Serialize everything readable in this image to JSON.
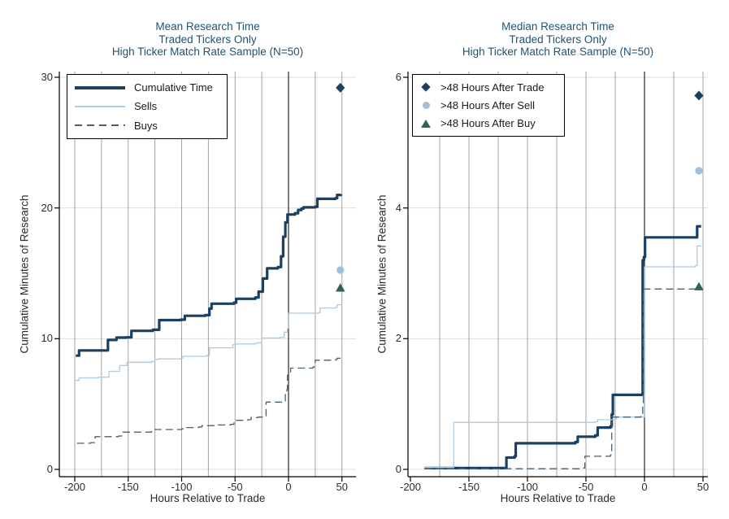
{
  "figure": {
    "background": "#ffffff",
    "palette": {
      "navy": "#1b4062",
      "light_blue": "#aecbdf",
      "slate_dashed": "#476173",
      "marker_circle_blue": "#9cc0de",
      "marker_triangle_green": "#2f6456",
      "title_navy": "#25536e",
      "zero_line_maroon": "#473333",
      "grid_vertical_gray": "#a3a3a3",
      "grid_horizontal_gray": "#dedede",
      "axis_black": "#000000"
    }
  },
  "chart_data": [
    {
      "type": "step-line",
      "title_lines": [
        "Mean Research Time",
        "Traded Tickers Only",
        "High Ticker Match Rate Sample (N=50)"
      ],
      "xlabel": "Hours Relative to Trade",
      "ylabel": "Cumulative Minutes of Research",
      "xlim": [
        -215,
        62
      ],
      "ylim": [
        0,
        30
      ],
      "xticks": [
        -200,
        -150,
        -100,
        -50,
        0,
        50
      ],
      "yticks": [
        0,
        10,
        20,
        30
      ],
      "xgrid_step": 25,
      "grid_on": true,
      "vline_x": 0,
      "vline_color": "#473333",
      "legend_position": "top-left",
      "legend": [
        {
          "label": "Cumulative Time",
          "style": "thick-line",
          "color": "#1b4062"
        },
        {
          "label": "Sells",
          "style": "thin-line",
          "color": "#aecbdf"
        },
        {
          "label": "Buys",
          "style": "dashed-line",
          "color": "#476173"
        }
      ],
      "series": [
        {
          "name": "Cumulative Time",
          "color": "#1b4062",
          "width": 3.2,
          "dash": null,
          "points": [
            [
              -199,
              8.7
            ],
            [
              -196,
              9.1
            ],
            [
              -176,
              9.1
            ],
            [
              -169,
              9.9
            ],
            [
              -161,
              10.08
            ],
            [
              -152,
              10.1
            ],
            [
              -147,
              10.6
            ],
            [
              -127,
              10.68
            ],
            [
              -121,
              11.42
            ],
            [
              -101,
              11.45
            ],
            [
              -97,
              11.75
            ],
            [
              -78,
              11.8
            ],
            [
              -74,
              12.3
            ],
            [
              -72,
              12.68
            ],
            [
              -51,
              12.75
            ],
            [
              -49,
              13.05
            ],
            [
              -31,
              13.15
            ],
            [
              -28,
              13.6
            ],
            [
              -24,
              14.6
            ],
            [
              -20,
              15.38
            ],
            [
              -10,
              15.48
            ],
            [
              -7,
              16.3
            ],
            [
              -5,
              17.8
            ],
            [
              -3,
              18.9
            ],
            [
              -1,
              19.5
            ],
            [
              6,
              19.6
            ],
            [
              9,
              19.85
            ],
            [
              12,
              19.95
            ],
            [
              14,
              20.05
            ],
            [
              25,
              20.1
            ],
            [
              27,
              20.7
            ],
            [
              44,
              20.75
            ],
            [
              45.5,
              21.0
            ],
            [
              49,
              21.05
            ]
          ]
        },
        {
          "name": "Sells",
          "color": "#aecbdf",
          "width": 1.3,
          "dash": null,
          "points": [
            [
              -200,
              6.8
            ],
            [
              -196,
              7.0
            ],
            [
              -178,
              7.05
            ],
            [
              -168,
              7.5
            ],
            [
              -158,
              7.95
            ],
            [
              -151,
              8.2
            ],
            [
              -128,
              8.25
            ],
            [
              -125,
              8.4
            ],
            [
              -122,
              8.45
            ],
            [
              -101,
              8.5
            ],
            [
              -99,
              8.65
            ],
            [
              -77,
              8.7
            ],
            [
              -74,
              9.3
            ],
            [
              -52,
              9.55
            ],
            [
              -50,
              9.6
            ],
            [
              -31,
              9.65
            ],
            [
              -29,
              9.7
            ],
            [
              -25,
              10.05
            ],
            [
              -8,
              10.1
            ],
            [
              -4,
              10.5
            ],
            [
              -1,
              10.8
            ],
            [
              0,
              11.95
            ],
            [
              28,
              12.0
            ],
            [
              29.5,
              12.35
            ],
            [
              44,
              12.4
            ],
            [
              45.5,
              12.6
            ],
            [
              49,
              12.65
            ]
          ]
        },
        {
          "name": "Buys",
          "color": "#476173",
          "width": 1.3,
          "dash": "9 5",
          "points": [
            [
              -198,
              2.0
            ],
            [
              -185,
              2.05
            ],
            [
              -181,
              2.5
            ],
            [
              -159,
              2.55
            ],
            [
              -156,
              2.85
            ],
            [
              -128,
              2.9
            ],
            [
              -125,
              3.05
            ],
            [
              -100,
              3.1
            ],
            [
              -97,
              3.2
            ],
            [
              -84,
              3.25
            ],
            [
              -81,
              3.35
            ],
            [
              -66,
              3.4
            ],
            [
              -54,
              3.45
            ],
            [
              -51,
              3.75
            ],
            [
              -38,
              3.8
            ],
            [
              -35,
              3.97
            ],
            [
              -28,
              4.0
            ],
            [
              -21,
              5.15
            ],
            [
              -6,
              5.2
            ],
            [
              -3,
              6.0
            ],
            [
              -1.5,
              6.1
            ],
            [
              -1,
              7.2
            ],
            [
              2,
              7.75
            ],
            [
              23,
              7.85
            ],
            [
              25,
              8.35
            ],
            [
              44,
              8.4
            ],
            [
              45.5,
              8.5
            ],
            [
              49,
              8.5
            ]
          ]
        }
      ],
      "markers": [
        {
          "name": ">48 Hours After Trade",
          "shape": "diamond",
          "color": "#1b4062",
          "x": 48.5,
          "y": 29.2
        },
        {
          "name": ">48 Hours After Sell",
          "shape": "circle",
          "color": "#9cc0de",
          "x": 48.5,
          "y": 15.25
        },
        {
          "name": ">48 Hours After Buy",
          "shape": "triangle",
          "color": "#2f6456",
          "x": 48.5,
          "y": 13.9
        }
      ]
    },
    {
      "type": "step-line",
      "title_lines": [
        "Median Research Time",
        "Traded Tickers Only",
        "High Ticker Match Rate Sample (N=50)"
      ],
      "xlabel": "Hours Relative to Trade",
      "ylabel": "Cumulative Minutes of Research",
      "xlim": [
        -203,
        55
      ],
      "ylim": [
        0,
        6
      ],
      "xticks": [
        -200,
        -150,
        -100,
        -50,
        0,
        50
      ],
      "yticks": [
        0,
        2,
        4,
        6
      ],
      "xgrid_step": 25,
      "grid_on": true,
      "vline_x": 0,
      "vline_color": "#473333",
      "legend_position": "top-left",
      "legend": [
        {
          "label": ">48 Hours After Trade",
          "style": "diamond",
          "color": "#1b4062"
        },
        {
          "label": ">48 Hours After Sell",
          "style": "circle",
          "color": "#9cc0de"
        },
        {
          "label": ">48 Hours After Buy",
          "style": "triangle",
          "color": "#2f6456"
        }
      ],
      "series": [
        {
          "name": "Cumulative Time",
          "color": "#1b4062",
          "width": 3.2,
          "dash": null,
          "points": [
            [
              -188,
              0.02
            ],
            [
              -119,
              0.02
            ],
            [
              -118,
              0.18
            ],
            [
              -111,
              0.2
            ],
            [
              -110,
              0.4
            ],
            [
              -59,
              0.42
            ],
            [
              -57,
              0.5
            ],
            [
              -42,
              0.52
            ],
            [
              -40,
              0.64
            ],
            [
              -29,
              0.66
            ],
            [
              -28,
              0.84
            ],
            [
              -27,
              1.14
            ],
            [
              -2,
              1.15
            ],
            [
              -1.5,
              3.2
            ],
            [
              -0.5,
              3.25
            ],
            [
              0.5,
              3.55
            ],
            [
              44,
              3.55
            ],
            [
              45,
              3.72
            ],
            [
              48.5,
              3.72
            ]
          ]
        },
        {
          "name": "Sells",
          "color": "#aecbdf",
          "width": 1.3,
          "dash": null,
          "points": [
            [
              -188,
              0.03
            ],
            [
              -164,
              0.03
            ],
            [
              -163,
              0.72
            ],
            [
              -42,
              0.73
            ],
            [
              -40,
              0.76
            ],
            [
              -25,
              0.77
            ],
            [
              -24,
              0.8
            ],
            [
              -0.5,
              0.8
            ],
            [
              0,
              3.1
            ],
            [
              43.5,
              3.12
            ],
            [
              45,
              3.42
            ],
            [
              48.5,
              3.42
            ]
          ]
        },
        {
          "name": "Buys",
          "color": "#476173",
          "width": 1.3,
          "dash": "9 5",
          "points": [
            [
              -188,
              0.01
            ],
            [
              -53,
              0.02
            ],
            [
              -51,
              0.2
            ],
            [
              -29,
              0.22
            ],
            [
              -28,
              0.8
            ],
            [
              -3,
              0.81
            ],
            [
              -1.5,
              1.0
            ],
            [
              -1,
              2.76
            ],
            [
              48,
              2.78
            ]
          ]
        }
      ],
      "markers": [
        {
          "name": ">48 Hours After Trade",
          "shape": "diamond",
          "color": "#1b4062",
          "x": 46.5,
          "y": 5.72
        },
        {
          "name": ">48 Hours After Sell",
          "shape": "circle",
          "color": "#9cc0de",
          "x": 46.5,
          "y": 4.57
        },
        {
          "name": ">48 Hours After Buy",
          "shape": "triangle",
          "color": "#2f6456",
          "x": 46.5,
          "y": 2.8
        }
      ]
    }
  ]
}
